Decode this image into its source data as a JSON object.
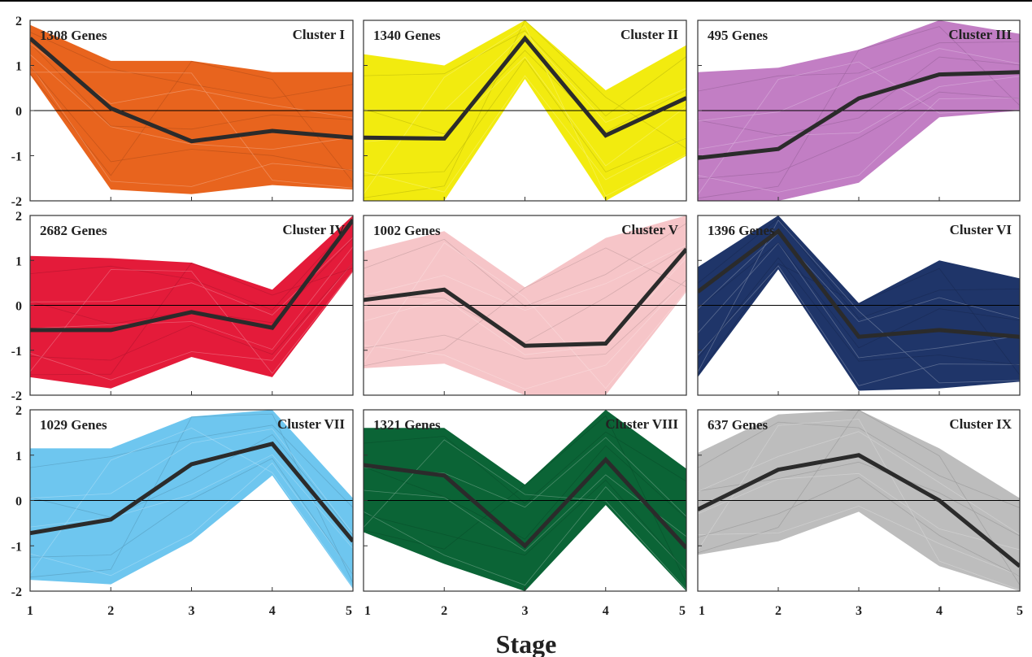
{
  "figure": {
    "xlabel": "Stage",
    "x_ticks": [
      1,
      2,
      3,
      4,
      5
    ],
    "y_ticks": [
      2,
      1,
      0,
      -1,
      -2
    ],
    "y_tick_labels": [
      "2",
      "1",
      "0",
      "-1",
      "-2"
    ],
    "x_tick_labels_row": [
      "1",
      "2",
      "3",
      "4",
      "5",
      "1",
      "2",
      "3",
      "4",
      "5",
      "1",
      "2",
      "3",
      "4",
      "5"
    ],
    "last_tick_label": "5"
  },
  "chart_data": [
    {
      "type": "line",
      "title": "Cluster I",
      "count_label": "1308 Genes",
      "color": "#e8641e",
      "x": [
        1,
        2,
        3,
        4,
        5
      ],
      "ylim": [
        -2,
        2
      ],
      "centroid": [
        1.6,
        0.05,
        -0.68,
        -0.45,
        -0.6
      ],
      "band_upper": [
        1.9,
        1.1,
        1.1,
        0.85,
        0.85
      ],
      "band_lower": [
        0.8,
        -1.75,
        -1.85,
        -1.65,
        -1.75
      ]
    },
    {
      "type": "line",
      "title": "Cluster II",
      "count_label": "1340 Genes",
      "color": "#f2eb0f",
      "x": [
        1,
        2,
        3,
        4,
        5
      ],
      "ylim": [
        -2,
        2
      ],
      "centroid": [
        -0.6,
        -0.62,
        1.6,
        -0.55,
        0.28
      ],
      "band_upper": [
        1.25,
        1.0,
        2.0,
        0.45,
        1.45
      ],
      "band_lower": [
        -2.0,
        -2.0,
        0.7,
        -2.0,
        -1.0
      ]
    },
    {
      "type": "line",
      "title": "Cluster III",
      "count_label": "495 Genes",
      "color": "#c27ec4",
      "x": [
        1,
        2,
        3,
        4,
        5
      ],
      "ylim": [
        -2,
        2
      ],
      "centroid": [
        -1.05,
        -0.85,
        0.27,
        0.8,
        0.85
      ],
      "band_upper": [
        0.85,
        0.95,
        1.35,
        2.0,
        1.7
      ],
      "band_lower": [
        -2.0,
        -2.0,
        -1.6,
        -0.15,
        0.0
      ]
    },
    {
      "type": "line",
      "title": "Cluster IV",
      "count_label": "2682 Genes",
      "color": "#e41b3a",
      "x": [
        1,
        2,
        3,
        4,
        5
      ],
      "ylim": [
        -2,
        2
      ],
      "centroid": [
        -0.55,
        -0.55,
        -0.15,
        -0.5,
        1.9
      ],
      "band_upper": [
        1.1,
        1.05,
        0.95,
        0.35,
        2.0
      ],
      "band_lower": [
        -1.6,
        -1.85,
        -1.15,
        -1.6,
        0.75
      ]
    },
    {
      "type": "line",
      "title": "Cluster V",
      "count_label": "1002 Genes",
      "color": "#f6c5c8",
      "x": [
        1,
        2,
        3,
        4,
        5
      ],
      "ylim": [
        -2,
        2
      ],
      "centroid": [
        0.12,
        0.35,
        -0.9,
        -0.85,
        1.25
      ],
      "band_upper": [
        1.2,
        1.65,
        0.4,
        1.5,
        2.0
      ],
      "band_lower": [
        -1.4,
        -1.3,
        -2.0,
        -2.0,
        0.3
      ]
    },
    {
      "type": "line",
      "title": "Cluster VI",
      "count_label": "1396 Genes",
      "color": "#1f3569",
      "x": [
        1,
        2,
        3,
        4,
        5
      ],
      "ylim": [
        -2,
        2
      ],
      "centroid": [
        0.3,
        1.65,
        -0.7,
        -0.55,
        -0.7
      ],
      "band_upper": [
        0.85,
        2.0,
        0.05,
        1.0,
        0.6
      ],
      "band_lower": [
        -1.6,
        0.8,
        -1.9,
        -1.85,
        -1.7
      ]
    },
    {
      "type": "line",
      "title": "Cluster VII",
      "count_label": "1029 Genes",
      "color": "#6ec6ef",
      "x": [
        1,
        2,
        3,
        4,
        5
      ],
      "ylim": [
        -2,
        2
      ],
      "centroid": [
        -0.72,
        -0.42,
        0.8,
        1.25,
        -0.9
      ],
      "band_upper": [
        1.15,
        1.15,
        1.85,
        2.0,
        0.05
      ],
      "band_lower": [
        -1.75,
        -1.85,
        -0.9,
        0.55,
        -1.95
      ]
    },
    {
      "type": "line",
      "title": "Cluster VIII",
      "count_label": "1321 Genes",
      "color": "#0b6436",
      "x": [
        1,
        2,
        3,
        4,
        5
      ],
      "ylim": [
        -2,
        2
      ],
      "centroid": [
        0.78,
        0.55,
        -1.0,
        0.9,
        -1.05
      ],
      "band_upper": [
        1.6,
        1.6,
        0.35,
        2.0,
        0.7
      ],
      "band_lower": [
        -0.7,
        -1.4,
        -2.0,
        -0.1,
        -2.0
      ]
    },
    {
      "type": "line",
      "title": "Cluster IX",
      "count_label": "637 Genes",
      "color": "#bdbdbd",
      "x": [
        1,
        2,
        3,
        4,
        5
      ],
      "ylim": [
        -2,
        2
      ],
      "centroid": [
        -0.2,
        0.68,
        1.0,
        0.0,
        -1.45
      ],
      "band_upper": [
        1.05,
        1.9,
        2.0,
        1.15,
        0.05
      ],
      "band_lower": [
        -1.2,
        -0.9,
        -0.25,
        -1.45,
        -2.0
      ]
    }
  ]
}
